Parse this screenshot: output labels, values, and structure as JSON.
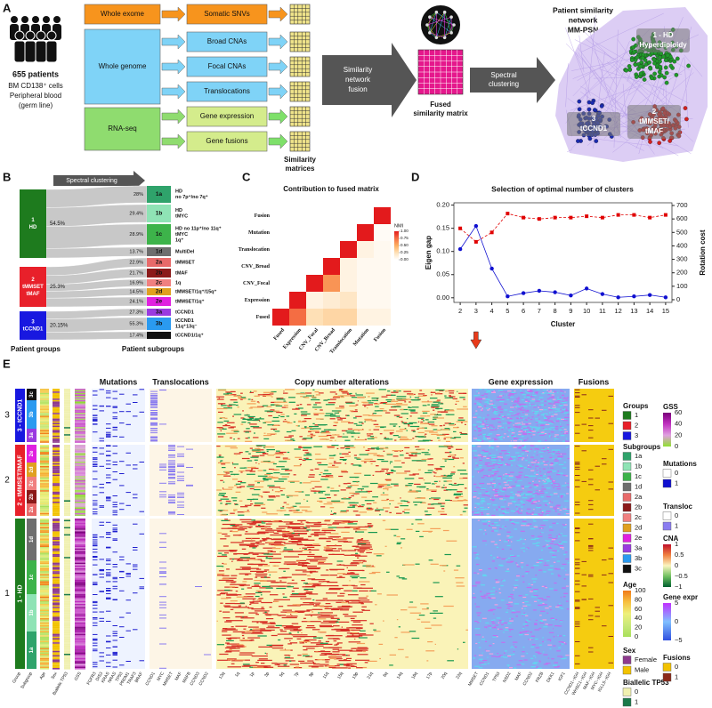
{
  "panel_labels": [
    "A",
    "B",
    "C",
    "D",
    "E"
  ],
  "panel_a": {
    "cohort": "655 patients",
    "samples": [
      "BM CD138⁺ cells",
      "Peripheral blood",
      "(germ line)"
    ],
    "assays": [
      "Whole exome",
      "Whole genome",
      "RNA-seq"
    ],
    "features": [
      "Somatic SNVs",
      "Broad CNAs",
      "Focal CNAs",
      "Translocations",
      "Gene expression",
      "Gene fusions"
    ],
    "matrices_label": [
      "Similarity",
      "matrices"
    ],
    "fusion_step": [
      "Similarity",
      "network",
      "fusion"
    ],
    "fused_label": [
      "Fused",
      "similarity matrix"
    ],
    "clustering_step": [
      "Spectral",
      "clustering"
    ],
    "network_title": [
      "Patient similarity",
      "network",
      "MM-PSN"
    ],
    "clusters": [
      [
        "1 - HD",
        "Hyperdiploidy"
      ],
      [
        "2",
        "tMMSET/",
        "tMAF"
      ],
      [
        "3",
        "tCCND1"
      ]
    ]
  },
  "panel_b": {
    "step": "Spectral clustering",
    "groups_title": "Patient groups",
    "subgroups_title": "Patient subgroups",
    "groups": [
      {
        "label": [
          "1",
          "HD"
        ],
        "share": "54.5%",
        "color": "#1e7b1e",
        "subgroups": [
          {
            "id": "1a",
            "share": "28%",
            "description": [
              "HD",
              "no 7p⁺/no 7q⁺"
            ],
            "color": "#2fa36b"
          },
          {
            "id": "1b",
            "share": "29.4%",
            "description": [
              "HD",
              "tMYC"
            ],
            "color": "#8fe3b5"
          },
          {
            "id": "1c",
            "share": "28.9%",
            "description": [
              "HD no 11p⁺/no 11q⁺",
              "tMYC",
              "1q⁺"
            ],
            "color": "#3db34a"
          },
          {
            "id": "1d",
            "share": "13.7%",
            "description": [
              "MultiDel"
            ],
            "color": "#6e6e6e"
          }
        ]
      },
      {
        "label": [
          "2",
          "tMMSET",
          "tMAF"
        ],
        "share": "25.3%",
        "color": "#e8202a",
        "subgroups": [
          {
            "id": "2a",
            "share": "22.9%",
            "description": [
              "tMMSET"
            ],
            "color": "#e86a6a"
          },
          {
            "id": "2b",
            "share": "21.7%",
            "description": [
              "tMAF"
            ],
            "color": "#8b1a1a"
          },
          {
            "id": "2c",
            "share": "16.9%",
            "description": [
              "1q"
            ],
            "color": "#f08080"
          },
          {
            "id": "2d",
            "share": "14.5%",
            "description": [
              "tMMSET/1q⁺/15q⁺"
            ],
            "color": "#e0a020"
          },
          {
            "id": "2e",
            "share": "24.1%",
            "description": [
              "tMMSET/1q⁺"
            ],
            "color": "#e020e0"
          }
        ]
      },
      {
        "label": [
          "3",
          "tCCND1"
        ],
        "share": "20.15%",
        "color": "#1818e0",
        "subgroups": [
          {
            "id": "3a",
            "share": "27.3%",
            "description": [
              "tCCND1"
            ],
            "color": "#9a3ae0"
          },
          {
            "id": "3b",
            "share": "55.3%",
            "description": [
              "tCCND1",
              "11q⁺13q⁻"
            ],
            "color": "#2a9af0"
          },
          {
            "id": "3c",
            "share": "17.4%",
            "description": [
              "tCCND1/1q⁺"
            ],
            "color": "#111111"
          }
        ]
      }
    ]
  },
  "chart_data": [
    {
      "type": "heatmap",
      "title": "Contribution to fused matrix",
      "categories": [
        "Fused",
        "Expression",
        "CNV_Focal",
        "CNV_Broad",
        "Translocation",
        "Mutation",
        "Fusion"
      ],
      "values": [
        [
          1,
          0.75,
          0.25,
          0.3,
          0.3,
          0.1,
          0.1
        ],
        [
          null,
          1,
          0.1,
          0.15,
          0.2,
          0.05,
          0.05
        ],
        [
          null,
          null,
          1,
          0.6,
          0.1,
          0.05,
          0.05
        ],
        [
          null,
          null,
          null,
          1,
          0.1,
          0.05,
          0.05
        ],
        [
          null,
          null,
          null,
          null,
          1,
          0.1,
          0.05
        ],
        [
          null,
          null,
          null,
          null,
          null,
          1,
          0.03
        ],
        [
          null,
          null,
          null,
          null,
          null,
          null,
          1
        ]
      ],
      "colorbar_label": "NMI",
      "zlim": [
        0,
        1
      ],
      "colors": [
        "#ffffff",
        "#fee0b6",
        "#fdae61",
        "#f46d43",
        "#e31a1c"
      ],
      "colorbar_ticks": [
        {
          "value": 1,
          "label": "1.00"
        },
        0.75,
        {
          "value": 0.5,
          "label": "0.50"
        },
        0.25,
        {
          "value": 0,
          "label": "0.00"
        }
      ]
    },
    {
      "type": "line",
      "title": "Selection of optimal number of clusters",
      "xlabel": "Cluster",
      "x": [
        2,
        3,
        4,
        5,
        6,
        7,
        8,
        9,
        10,
        11,
        12,
        13,
        14,
        15
      ],
      "xlim": [
        1.6,
        15.4
      ],
      "xticks": [
        2,
        3,
        4,
        5,
        6,
        7,
        8,
        9,
        10,
        11,
        12,
        13,
        14,
        15
      ],
      "ylim": [
        -0.01,
        0.205
      ],
      "yticks": [
        {
          "value": 0,
          "label": "0.00"
        },
        0.05,
        {
          "value": 0.1,
          "label": "0.10"
        },
        0.15,
        {
          "value": 0.2,
          "label": "0.20"
        }
      ],
      "y2lim": [
        -20,
        720
      ],
      "y2ticks": [
        0,
        100,
        200,
        300,
        400,
        500,
        600,
        700
      ],
      "highlight_x": 3,
      "series": [
        {
          "name": "Eigen gap",
          "color": "#1010d0",
          "values": [
            0.105,
            0.155,
            0.063,
            0.003,
            0.01,
            0.015,
            0.012,
            0.005,
            0.02,
            0.008,
            0.001,
            0.003,
            0.006,
            0.001
          ]
        },
        {
          "name": "Rotation cost",
          "color": "#e00000",
          "axis": "y2",
          "values": [
            530,
            430,
            500,
            640,
            610,
            600,
            610,
            610,
            620,
            610,
            630,
            630,
            610,
            630
          ]
        }
      ]
    }
  ],
  "panel_e": {
    "sections": [
      "Mutations",
      "Translocations",
      "Copy number alterations",
      "Gene expression",
      "Fusions"
    ],
    "groups": [
      {
        "number": "3",
        "label": "3 - tCCND1",
        "color": "#1818e0",
        "subgroups": [
          "3c",
          "3b",
          "3a"
        ]
      },
      {
        "number": "2",
        "label": "2 - tMMSET/tMAF",
        "color": "#e8202a",
        "subgroups": [
          "2e",
          "2d",
          "2c",
          "2b",
          "2a"
        ]
      },
      {
        "number": "1",
        "label": "1 - HD",
        "color": "#1e7b1e",
        "subgroups": [
          "1d",
          "1c",
          "1b",
          "1a"
        ]
      }
    ],
    "annotation_columns": [
      "Group",
      "Subgroup",
      "Age",
      "Sex",
      "Biallelic TP53",
      "GSS"
    ],
    "genes": {
      "mutations": [
        "FGFR3",
        "DIS3",
        "KRAS",
        "NRAS",
        "TP53",
        "PRDM1",
        "TRAF3",
        "BRAF"
      ],
      "translocations": [
        "CCND1",
        "MYC",
        "MMSET",
        "MAF",
        "MAFB",
        "CCND3",
        "CCND2"
      ],
      "cna": [
        "13q",
        "1q",
        "1p",
        "3p",
        "5q",
        "7p",
        "9p",
        "11q",
        "15q",
        "19p",
        "21q",
        "6q",
        "14q",
        "16q",
        "17p",
        "20q",
        "22q"
      ],
      "expression": [
        "MMSET",
        "CCND1",
        "TP53",
        "NSD2",
        "MAF",
        "CCND2",
        "FRZB",
        "DKK1",
        "IGF1"
      ],
      "fusions": [
        "CCND1--IGH",
        "WHSC1--IGH",
        "MAF--IGH",
        "MYC--IGH",
        "IGLL5--IGH"
      ]
    },
    "legend": [
      {
        "title": "Groups",
        "entries": [
          {
            "label": "1",
            "color": "#1e7b1e"
          },
          {
            "label": "2",
            "color": "#e8202a"
          },
          {
            "label": "3",
            "color": "#1818e0"
          }
        ]
      },
      {
        "title": "Subgroups",
        "entries": [
          {
            "label": "1a",
            "color": "#2fa36b"
          },
          {
            "label": "1b",
            "color": "#8fe3b5"
          },
          {
            "label": "1c",
            "color": "#3db34a"
          },
          {
            "label": "1d",
            "color": "#6e6e6e"
          },
          {
            "label": "2a",
            "color": "#e86a6a"
          },
          {
            "label": "2b",
            "color": "#8b1a1a"
          },
          {
            "label": "2c",
            "color": "#f08080"
          },
          {
            "label": "2d",
            "color": "#e0a020"
          },
          {
            "label": "2e",
            "color": "#e020e0"
          },
          {
            "label": "3a",
            "color": "#9a3ae0"
          },
          {
            "label": "3b",
            "color": "#2a9af0"
          },
          {
            "label": "3c",
            "color": "#111111"
          }
        ]
      },
      {
        "title": "Mutations",
        "entries": [
          {
            "label": "0",
            "color": "#ffffff"
          },
          {
            "label": "1",
            "color": "#1010d0"
          }
        ]
      },
      {
        "title": "Transloc",
        "entries": [
          {
            "label": "0",
            "color": "#ffffff"
          },
          {
            "label": "1",
            "color": "#8a7cf0"
          }
        ]
      },
      {
        "title": "Age",
        "ticks": [
          "100",
          "80",
          "60",
          "40",
          "20",
          "0"
        ],
        "colors": [
          "#f07a1a",
          "#f7c040",
          "#eef07a",
          "#c9e87a",
          "#a8e05a"
        ]
      },
      {
        "title": "Sex",
        "entries": [
          {
            "label": "Female",
            "color": "#8e3a8e"
          },
          {
            "label": "Male",
            "color": "#f2c200"
          }
        ]
      },
      {
        "title": "Biallelic TP53",
        "entries": [
          {
            "label": "0",
            "color": "#f0f0b0"
          },
          {
            "label": "1",
            "color": "#1a7a4a"
          }
        ]
      },
      {
        "title": "GSS",
        "ticks": [
          "60",
          "40",
          "20",
          "0"
        ],
        "colors": [
          "#7a007a",
          "#c030c0",
          "#e0a0e0",
          "#90e030"
        ]
      },
      {
        "title": "CNA",
        "ticks": [
          "1",
          "0.5",
          "0",
          "−0.5",
          "−1"
        ],
        "colors": [
          "#c0102a",
          "#f08040",
          "#faf5c0",
          "#70c060",
          "#006030"
        ]
      },
      {
        "title": "Gene expr",
        "ticks": [
          "5",
          "0",
          "−5"
        ],
        "colors": [
          "#c030ff",
          "#80c0ff",
          "#3050e0"
        ]
      },
      {
        "title": "Fusions",
        "entries": [
          {
            "label": "0",
            "color": "#f2c200"
          },
          {
            "label": "1",
            "color": "#8b2a1a"
          }
        ]
      }
    ]
  }
}
